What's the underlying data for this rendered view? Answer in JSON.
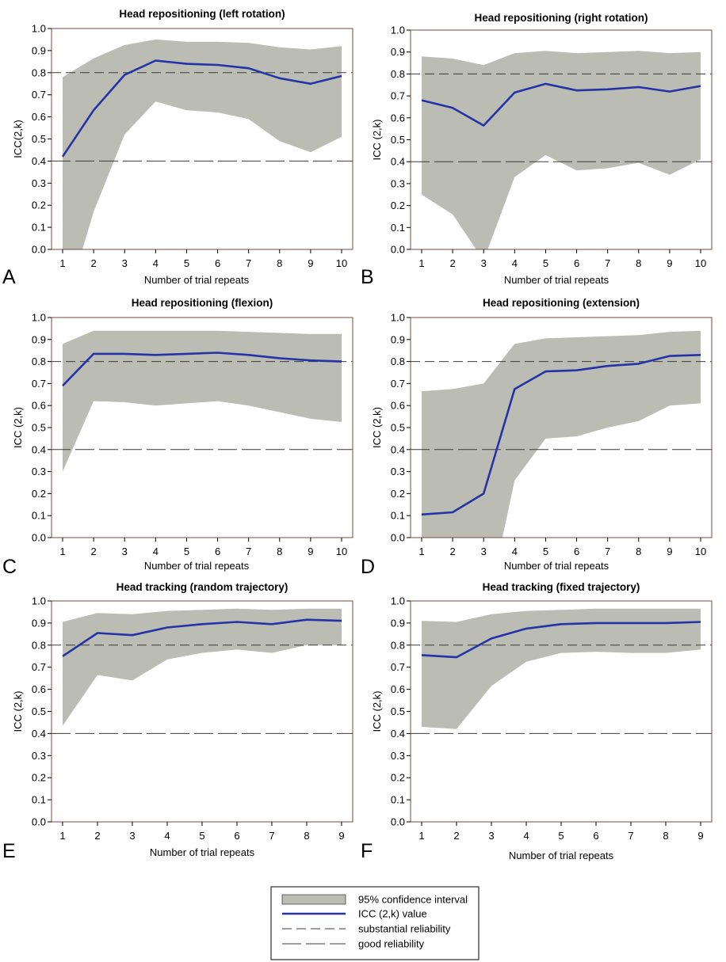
{
  "colors": {
    "band": "#bbbcb3",
    "line": "#2433a6",
    "ref": "#3a3a3a"
  },
  "legend": {
    "items": [
      {
        "label": "95% confidence interval",
        "kind": "band"
      },
      {
        "label": "ICC (2,k) value",
        "kind": "line"
      },
      {
        "label": "substantial reliability",
        "kind": "dash-short"
      },
      {
        "label": "good reliability",
        "kind": "dash-long"
      }
    ]
  },
  "chart_data": [
    {
      "letter": "A",
      "type": "area",
      "title": "Head repositioning (left rotation)",
      "xlabel": "Number of trial repeats",
      "ylabel": "ICC(2,k)",
      "x": [
        1,
        2,
        3,
        4,
        5,
        6,
        7,
        8,
        9,
        10
      ],
      "ylim": [
        0,
        1
      ],
      "y_ticks": [
        "0.0",
        "0.1",
        "0.2",
        "0.3",
        "0.4",
        "0.5",
        "0.6",
        "0.7",
        "0.8",
        "0.9",
        "1.0"
      ],
      "reference_lines": [
        0.8,
        0.4
      ],
      "series": [
        {
          "name": "ICC (2,k) value",
          "values": [
            0.42,
            0.63,
            0.79,
            0.855,
            0.84,
            0.835,
            0.82,
            0.775,
            0.75,
            0.785
          ]
        },
        {
          "name": "95% confidence interval",
          "lower": [
            -0.3,
            0.17,
            0.52,
            0.67,
            0.63,
            0.62,
            0.59,
            0.49,
            0.44,
            0.51
          ],
          "upper": [
            0.78,
            0.865,
            0.925,
            0.95,
            0.94,
            0.94,
            0.935,
            0.915,
            0.905,
            0.92
          ]
        }
      ]
    },
    {
      "letter": "B",
      "type": "area",
      "title": "Head repositioning (right rotation)",
      "xlabel": "Number of trial repeats",
      "ylabel": "ICC (2,k)",
      "x": [
        1,
        2,
        3,
        4,
        5,
        6,
        7,
        8,
        9,
        10
      ],
      "ylim": [
        0,
        1
      ],
      "y_ticks": [
        "0.0",
        "0.1",
        "0.2",
        "0.3",
        "0.4",
        "0.5",
        "0.6",
        "0.7",
        "0.8",
        "0.9",
        "1.0"
      ],
      "reference_lines": [
        0.8,
        0.4
      ],
      "series": [
        {
          "name": "ICC (2,k) value",
          "values": [
            0.68,
            0.645,
            0.565,
            0.715,
            0.755,
            0.725,
            0.73,
            0.74,
            0.72,
            0.745
          ]
        },
        {
          "name": "95% confidence interval",
          "lower": [
            0.25,
            0.16,
            -0.05,
            0.33,
            0.43,
            0.36,
            0.37,
            0.395,
            0.34,
            0.41
          ],
          "upper": [
            0.88,
            0.87,
            0.84,
            0.895,
            0.905,
            0.895,
            0.9,
            0.905,
            0.895,
            0.9
          ]
        }
      ]
    },
    {
      "letter": "C",
      "type": "area",
      "title": "Head repositioning (flexion)",
      "xlabel": "Number of trial repeats",
      "ylabel": "ICC (2,k)",
      "x": [
        1,
        2,
        3,
        4,
        5,
        6,
        7,
        8,
        9,
        10
      ],
      "ylim": [
        0,
        1
      ],
      "y_ticks": [
        "0.0",
        "0.1",
        "0.2",
        "0.3",
        "0.4",
        "0.5",
        "0.6",
        "0.7",
        "0.8",
        "0.9",
        "1.0"
      ],
      "reference_lines": [
        0.8,
        0.4
      ],
      "series": [
        {
          "name": "ICC (2,k) value",
          "values": [
            0.69,
            0.835,
            0.835,
            0.83,
            0.835,
            0.84,
            0.83,
            0.815,
            0.805,
            0.8
          ]
        },
        {
          "name": "95% confidence interval",
          "lower": [
            0.3,
            0.62,
            0.615,
            0.6,
            0.61,
            0.62,
            0.6,
            0.57,
            0.54,
            0.525
          ],
          "upper": [
            0.88,
            0.94,
            0.94,
            0.94,
            0.94,
            0.94,
            0.935,
            0.93,
            0.925,
            0.925
          ]
        }
      ]
    },
    {
      "letter": "D",
      "type": "area",
      "title": "Head repositioning (extension)",
      "xlabel": "Number of trial repeats",
      "ylabel": "ICC (2,k)",
      "x": [
        1,
        2,
        3,
        4,
        5,
        6,
        7,
        8,
        9,
        10
      ],
      "ylim": [
        0,
        1
      ],
      "y_ticks": [
        "0.0",
        "0.1",
        "0.2",
        "0.3",
        "0.4",
        "0.5",
        "0.6",
        "0.7",
        "0.8",
        "0.9",
        "1.0"
      ],
      "reference_lines": [
        0.8,
        0.4
      ],
      "series": [
        {
          "name": "ICC (2,k) value",
          "values": [
            0.105,
            0.115,
            0.2,
            0.675,
            0.755,
            0.76,
            0.78,
            0.79,
            0.825,
            0.83
          ]
        },
        {
          "name": "95% confidence interval",
          "lower": [
            -0.6,
            -0.5,
            -0.4,
            0.26,
            0.45,
            0.46,
            0.5,
            0.53,
            0.6,
            0.61
          ],
          "upper": [
            0.665,
            0.675,
            0.7,
            0.88,
            0.905,
            0.91,
            0.915,
            0.92,
            0.935,
            0.94
          ]
        }
      ]
    },
    {
      "letter": "E",
      "type": "area",
      "title": "Head tracking (random trajectory)",
      "xlabel": "Number of trial repeats",
      "ylabel": "ICC (2,k)",
      "x": [
        1,
        2,
        3,
        4,
        5,
        6,
        7,
        8,
        9
      ],
      "ylim": [
        0,
        1
      ],
      "y_ticks": [
        "0.0",
        "0.1",
        "0.2",
        "0.3",
        "0.4",
        "0.5",
        "0.6",
        "0.7",
        "0.8",
        "0.9",
        "1.0"
      ],
      "reference_lines": [
        0.8,
        0.4
      ],
      "series": [
        {
          "name": "ICC (2,k) value",
          "values": [
            0.75,
            0.855,
            0.845,
            0.88,
            0.895,
            0.905,
            0.895,
            0.915,
            0.91
          ]
        },
        {
          "name": "95% confidence interval",
          "lower": [
            0.435,
            0.665,
            0.64,
            0.735,
            0.765,
            0.78,
            0.765,
            0.8,
            0.8
          ],
          "upper": [
            0.905,
            0.945,
            0.94,
            0.955,
            0.96,
            0.965,
            0.96,
            0.965,
            0.965
          ]
        }
      ]
    },
    {
      "letter": "F",
      "type": "area",
      "title": "Head tracking (fixed trajectory)",
      "xlabel": "Number of trial repeats",
      "ylabel": "ICC (2,k)",
      "x": [
        1,
        2,
        3,
        4,
        5,
        6,
        7,
        8,
        9
      ],
      "ylim": [
        0,
        1
      ],
      "y_ticks": [
        "0.0",
        "0.1",
        "0.2",
        "0.3",
        "0.4",
        "0.5",
        "0.6",
        "0.7",
        "0.8",
        "0.9",
        "1.0"
      ],
      "reference_lines": [
        0.8,
        0.4
      ],
      "series": [
        {
          "name": "ICC (2,k) value",
          "values": [
            0.755,
            0.745,
            0.83,
            0.875,
            0.895,
            0.9,
            0.9,
            0.9,
            0.905
          ]
        },
        {
          "name": "95% confidence interval",
          "lower": [
            0.43,
            0.42,
            0.615,
            0.725,
            0.765,
            0.77,
            0.765,
            0.765,
            0.78
          ],
          "upper": [
            0.91,
            0.905,
            0.94,
            0.955,
            0.96,
            0.965,
            0.965,
            0.965,
            0.965
          ]
        }
      ]
    }
  ]
}
